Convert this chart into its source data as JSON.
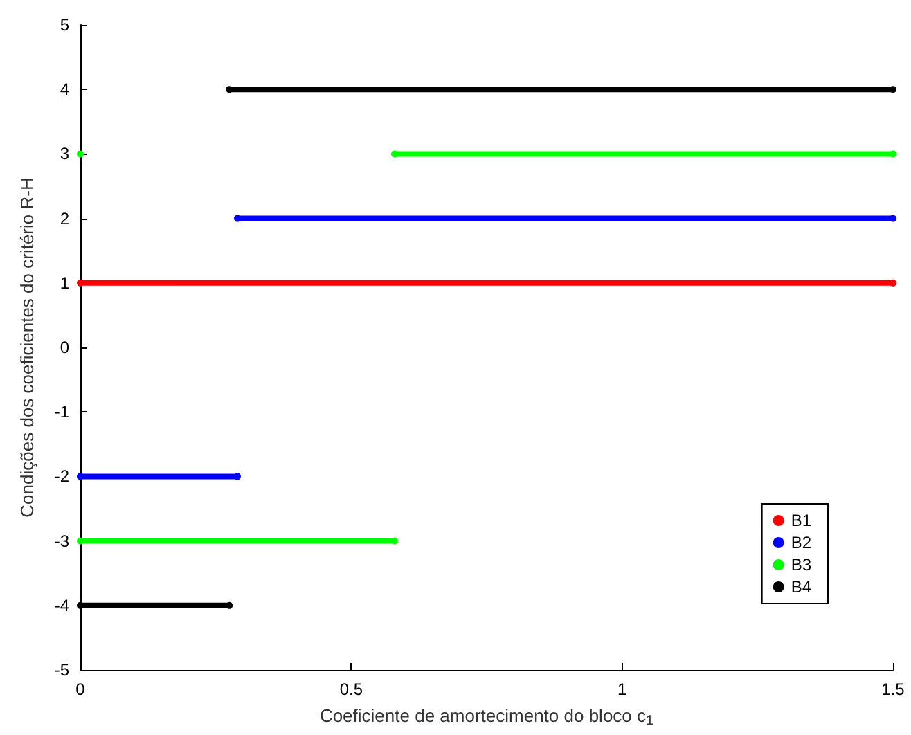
{
  "chart_data": {
    "type": "line",
    "xlabel": "Coeficiente de amortecimento do bloco c$_{1}$",
    "ylabel": "Condições dos coeficientes do critério R-H",
    "xlim": [
      0,
      1.5
    ],
    "xticks": [
      0,
      0.5,
      1,
      1.5
    ],
    "ylim": [
      -5,
      5
    ],
    "yticks": [
      -5,
      -4,
      -3,
      -2,
      -1,
      0,
      1,
      2,
      3,
      4,
      5
    ],
    "grid": false,
    "legend": "bottom right",
    "marker": "circle",
    "line_style": "solid",
    "series": [
      {
        "name": "B1",
        "color": "#ff0000",
        "x": [
          0,
          1.5
        ],
        "values": [
          1,
          1
        ]
      },
      {
        "name": "B2",
        "color": "#0000ff",
        "x": [
          0,
          0.29,
          null,
          0.29,
          1.5
        ],
        "values": [
          -2,
          -2,
          null,
          2,
          2
        ]
      },
      {
        "name": "B3",
        "color": "#00ff00",
        "x": [
          0,
          0.58,
          null,
          0,
          null,
          0.58,
          1.5
        ],
        "values": [
          -3,
          -3,
          null,
          3,
          null,
          3,
          3
        ]
      },
      {
        "name": "B4",
        "color": "#000000",
        "x": [
          0,
          0.275,
          null,
          0.275,
          1.5
        ],
        "values": [
          -4,
          -4,
          null,
          4,
          4
        ]
      }
    ]
  }
}
